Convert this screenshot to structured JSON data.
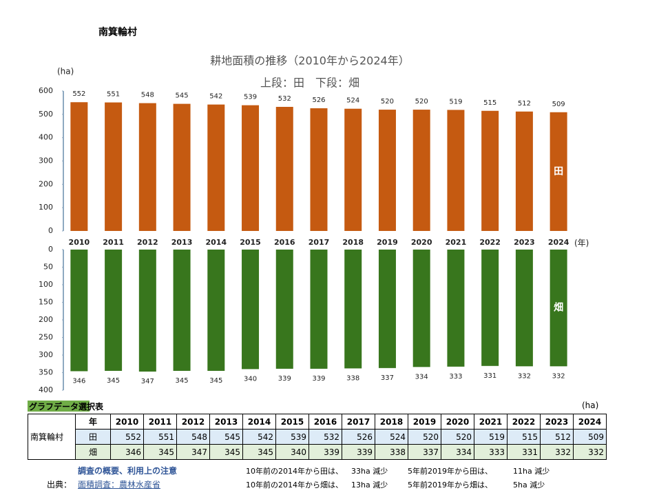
{
  "header": {
    "place": "南箕輪村"
  },
  "chart_data": [
    {
      "type": "bar",
      "title": "耕地面積の推移（2010年から2024年）",
      "subtitle": "上段：田　下段：畑",
      "y_label": "(ha)",
      "x_label": "(年)",
      "categories": [
        "2010",
        "2011",
        "2012",
        "2013",
        "2014",
        "2015",
        "2016",
        "2017",
        "2018",
        "2019",
        "2020",
        "2021",
        "2022",
        "2023",
        "2024"
      ],
      "series": [
        {
          "name": "田",
          "color": "#c55a11",
          "values": [
            552,
            551,
            548,
            545,
            542,
            539,
            532,
            526,
            524,
            520,
            520,
            519,
            515,
            512,
            509
          ]
        }
      ],
      "ylim": [
        0,
        600
      ],
      "yticks": [
        0,
        100,
        200,
        300,
        400,
        500,
        600
      ],
      "y_reversed": false
    },
    {
      "type": "bar",
      "series": [
        {
          "name": "畑",
          "color": "#38761d",
          "values": [
            346,
            345,
            347,
            345,
            345,
            340,
            339,
            339,
            338,
            337,
            334,
            333,
            331,
            332,
            332
          ]
        }
      ],
      "ylim": [
        0,
        400
      ],
      "yticks": [
        0,
        50,
        100,
        150,
        200,
        250,
        300,
        350,
        400
      ],
      "y_reversed": true
    }
  ],
  "table": {
    "title": "グラフデータ選択表",
    "unit": "(ha)",
    "header": [
      "年",
      "2010",
      "2011",
      "2012",
      "2013",
      "2014",
      "2015",
      "2016",
      "2017",
      "2018",
      "2019",
      "2020",
      "2021",
      "2022",
      "2023",
      "2024"
    ],
    "group": "南箕輪村",
    "rows": [
      {
        "label": "田",
        "values": [
          552,
          551,
          548,
          545,
          542,
          539,
          532,
          526,
          524,
          520,
          520,
          519,
          515,
          512,
          509
        ]
      },
      {
        "label": "畑",
        "values": [
          346,
          345,
          347,
          345,
          345,
          340,
          339,
          339,
          338,
          337,
          334,
          333,
          331,
          332,
          332
        ]
      }
    ]
  },
  "footer": {
    "notes_link": "調査の概要、利用上の注意",
    "source_label": "出典：",
    "source": "面積調査：農林水産省",
    "changes": [
      [
        "10年前の2014年から田は、",
        "33ha 減少",
        "5年前2019年から田は、",
        "11ha 減少"
      ],
      [
        "10年前の2014年から畑は、",
        "13ha 減少",
        "5年前2019年から畑は、",
        "5ha 減少"
      ]
    ]
  }
}
